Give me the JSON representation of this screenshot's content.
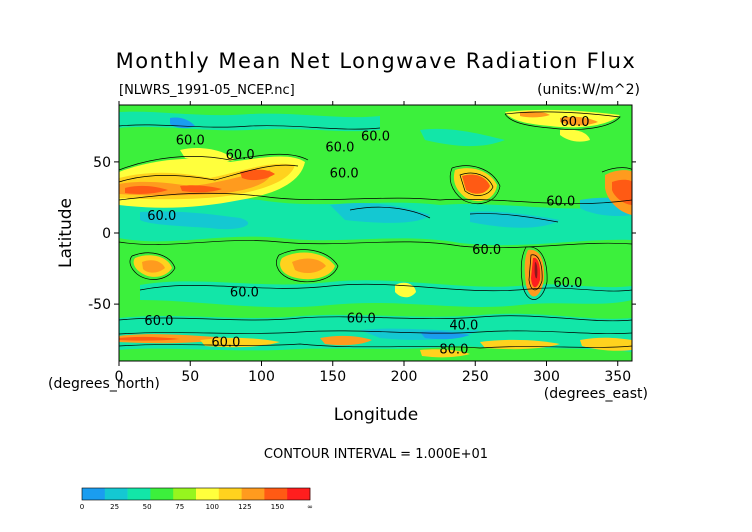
{
  "chart_data": {
    "type": "heatmap",
    "title": "Monthly Mean Net Longwave Radiation Flux",
    "file_label": "[NLWRS_1991-05_NCEP.nc]",
    "units_label": "(units:W/m^2)",
    "xlabel": "Longitude",
    "ylabel": "Latitude",
    "x_unit_label": "(degrees_east)",
    "y_unit_label": "(degrees_north)",
    "xlim": [
      0,
      360
    ],
    "ylim": [
      -90,
      90
    ],
    "x_ticks": [
      0,
      50,
      100,
      150,
      200,
      250,
      300,
      350
    ],
    "y_ticks": [
      50,
      0,
      -50
    ],
    "contour_interval_text": "CONTOUR INTERVAL = 1.000E+01",
    "contour_labels": [
      {
        "text": "60.0",
        "lon": 50,
        "lat": 65
      },
      {
        "text": "60.0",
        "lon": 85,
        "lat": 55
      },
      {
        "text": "60.0",
        "lon": 155,
        "lat": 60
      },
      {
        "text": "60.0",
        "lon": 180,
        "lat": 68
      },
      {
        "text": "60.0",
        "lon": 320,
        "lat": 78
      },
      {
        "text": "60.0",
        "lon": 158,
        "lat": 42
      },
      {
        "text": "60.0",
        "lon": 30,
        "lat": 12
      },
      {
        "text": "60.0",
        "lon": 310,
        "lat": 22
      },
      {
        "text": "60.0",
        "lon": 258,
        "lat": -12
      },
      {
        "text": "60.0",
        "lon": 315,
        "lat": -35
      },
      {
        "text": "60.0",
        "lon": 88,
        "lat": -42
      },
      {
        "text": "60.0",
        "lon": 170,
        "lat": -60
      },
      {
        "text": "60.0",
        "lon": 28,
        "lat": -62
      },
      {
        "text": "60.0",
        "lon": 75,
        "lat": -77
      },
      {
        "text": "40.0",
        "lon": 242,
        "lat": -65
      },
      {
        "text": "80.0",
        "lon": 235,
        "lat": -82
      }
    ],
    "colorbar": {
      "tick_labels": [
        "0",
        "25",
        "50",
        "75",
        "100",
        "125",
        "150",
        "∞"
      ],
      "colors": [
        "#1a9df0",
        "#14c8d2",
        "#12e6a8",
        "#3cf03c",
        "#96f51e",
        "#ffff3c",
        "#ffd21e",
        "#ff9b1e",
        "#ff5a14",
        "#ff1e1e"
      ]
    },
    "field_description_note": ""
  }
}
